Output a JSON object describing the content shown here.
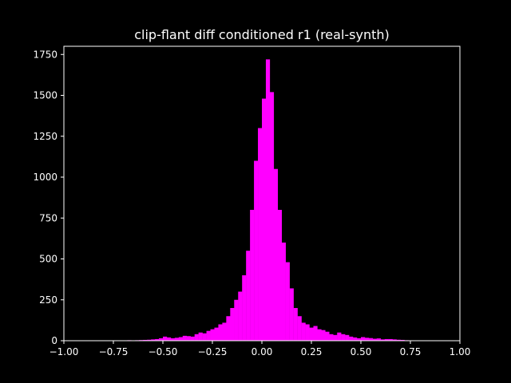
{
  "colors": {
    "background": "#000000",
    "axes": "#ffffff",
    "bars": "#ff00ff"
  },
  "chart_data": {
    "type": "bar",
    "title": "clip-flant diff conditioned r1 (real-synth)",
    "xlabel": "",
    "ylabel": "",
    "xlim": [
      -1.0,
      1.0
    ],
    "ylim": [
      0,
      1800
    ],
    "x_ticks": [
      -1.0,
      -0.75,
      -0.5,
      -0.25,
      0.0,
      0.25,
      0.5,
      0.75,
      1.0
    ],
    "x_tick_labels": [
      "−1.00",
      "−0.75",
      "−0.50",
      "−0.25",
      "0.00",
      "0.25",
      "0.50",
      "0.75",
      "1.00"
    ],
    "y_ticks": [
      0,
      250,
      500,
      750,
      1000,
      1250,
      1500,
      1750
    ],
    "y_tick_labels": [
      "0",
      "250",
      "500",
      "750",
      "1000",
      "1250",
      "1500",
      "1750"
    ],
    "grid": false,
    "legend": "none",
    "bin_width": 0.02,
    "bin_starts": [
      -0.68,
      -0.66,
      -0.64,
      -0.62,
      -0.6,
      -0.58,
      -0.56,
      -0.54,
      -0.52,
      -0.5,
      -0.48,
      -0.46,
      -0.44,
      -0.42,
      -0.4,
      -0.38,
      -0.36,
      -0.34,
      -0.32,
      -0.3,
      -0.28,
      -0.26,
      -0.24,
      -0.22,
      -0.2,
      -0.18,
      -0.16,
      -0.14,
      -0.12,
      -0.1,
      -0.08,
      -0.06,
      -0.04,
      -0.02,
      0.0,
      0.02,
      0.04,
      0.06,
      0.08,
      0.1,
      0.12,
      0.14,
      0.16,
      0.18,
      0.2,
      0.22,
      0.24,
      0.26,
      0.28,
      0.3,
      0.32,
      0.34,
      0.36,
      0.38,
      0.4,
      0.42,
      0.44,
      0.46,
      0.48,
      0.5,
      0.52,
      0.54,
      0.56,
      0.58,
      0.6,
      0.62,
      0.64,
      0.66,
      0.68,
      0.7,
      0.72,
      0.74,
      0.76,
      0.78,
      0.8,
      0.82
    ],
    "values": [
      3,
      2,
      3,
      4,
      5,
      6,
      8,
      10,
      15,
      25,
      20,
      15,
      18,
      22,
      30,
      28,
      25,
      40,
      50,
      45,
      60,
      70,
      80,
      100,
      110,
      150,
      200,
      250,
      300,
      400,
      550,
      800,
      1100,
      1300,
      1480,
      1720,
      1520,
      1050,
      800,
      600,
      480,
      320,
      200,
      150,
      110,
      100,
      80,
      90,
      70,
      65,
      55,
      40,
      35,
      50,
      40,
      35,
      25,
      20,
      15,
      22,
      18,
      16,
      12,
      14,
      8,
      10,
      10,
      8,
      6,
      5,
      3,
      2,
      1,
      1,
      1,
      2
    ]
  }
}
